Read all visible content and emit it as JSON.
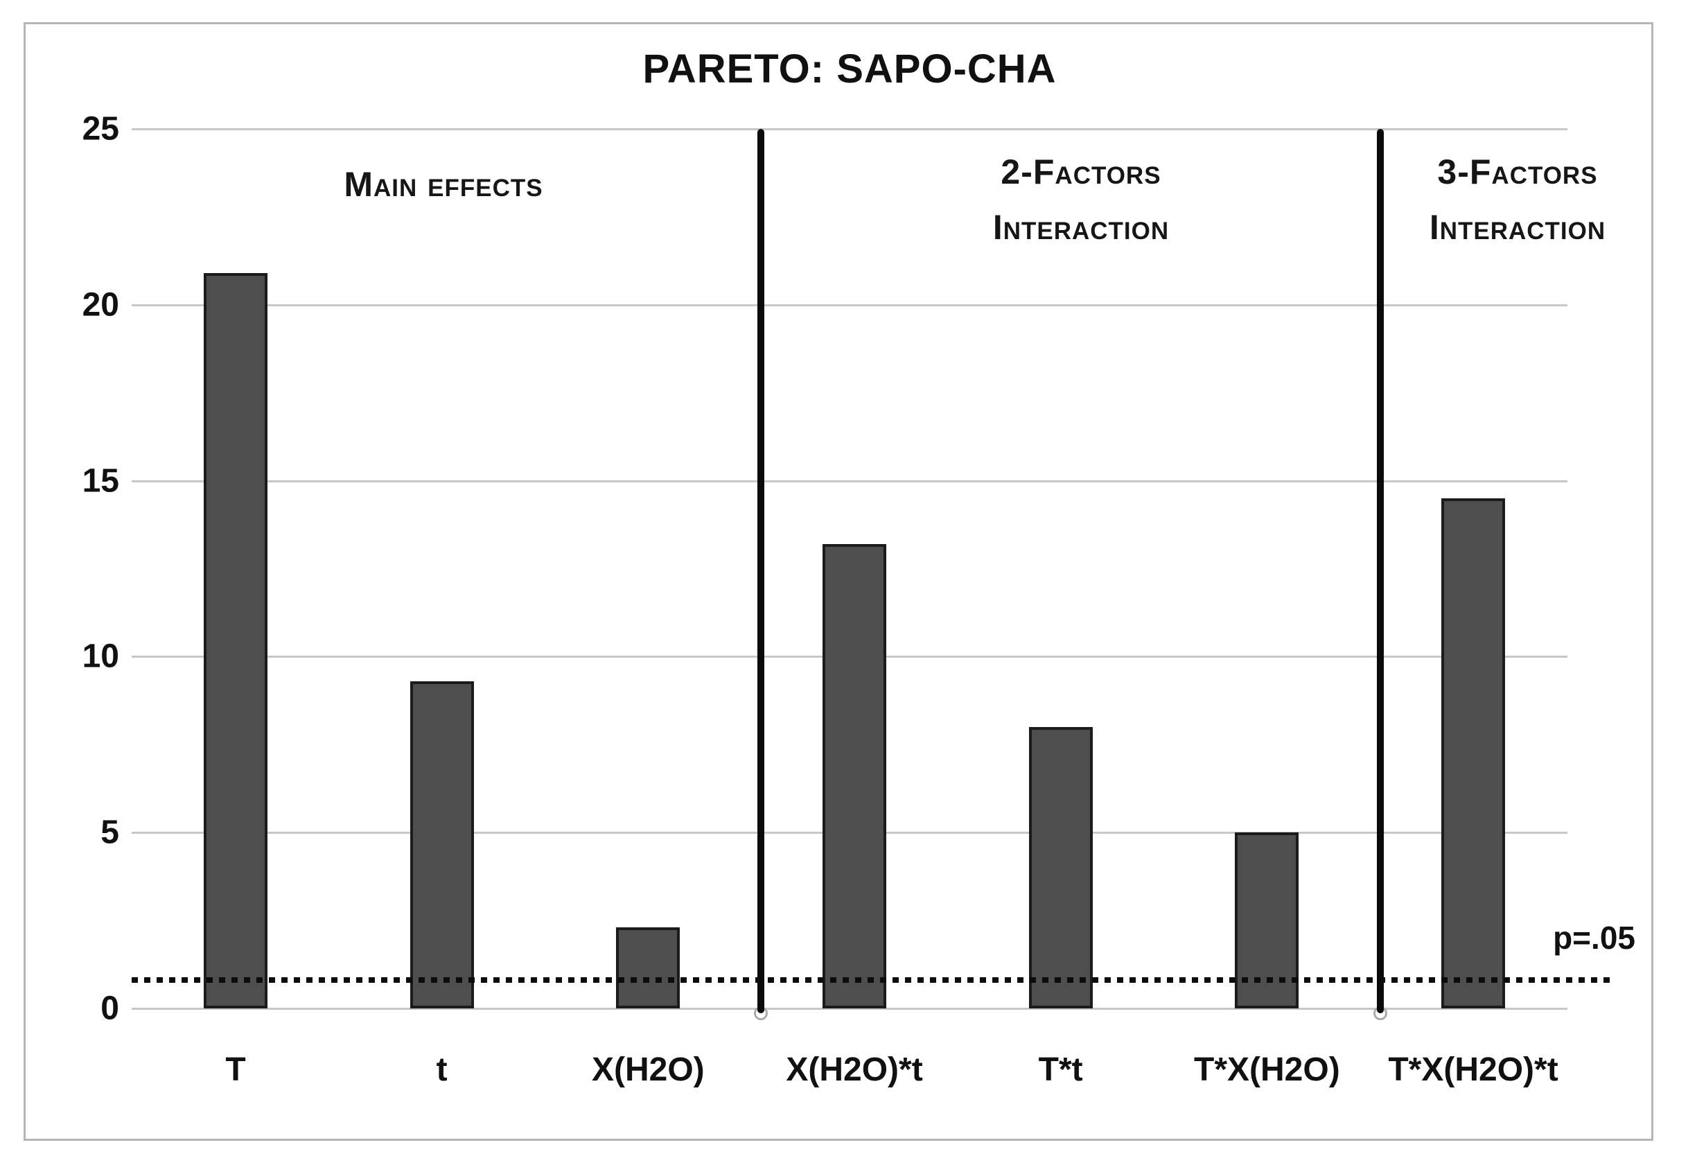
{
  "chart": {
    "title": "PARETO: SAPO-CHA"
  },
  "chart_data": {
    "type": "bar",
    "title": "PARETO: SAPO-CHA",
    "categories": [
      "T",
      "t",
      "X(H2O)",
      "X(H2O)*t",
      "T*t",
      "T*X(H2O)",
      "T*X(H2O)*t"
    ],
    "values": [
      20.9,
      9.3,
      2.3,
      13.2,
      8.0,
      5.0,
      14.5
    ],
    "xlabel": "",
    "ylabel": "",
    "ylim": [
      0,
      25
    ],
    "yticks": [
      0,
      5,
      10,
      15,
      20,
      25
    ],
    "grid": "horizontal",
    "legend": "none",
    "bar_color": "#4e4e4e",
    "bar_border_color": "#1b1b1b",
    "gridline_color": "#c7c7c7",
    "significance_line": {
      "value": 0.8,
      "label": "p=.05",
      "style": "dotted",
      "color": "#0c0c0c"
    },
    "sections": [
      {
        "lines": [
          "Main effects"
        ],
        "categories_span": [
          "T",
          "t",
          "X(H2O)"
        ]
      },
      {
        "lines": [
          "2-Factors",
          "Interaction"
        ],
        "categories_span": [
          "X(H2O)*t",
          "T*t",
          "T*X(H2O)"
        ]
      },
      {
        "lines": [
          "3-Factors",
          "Interaction"
        ],
        "categories_span": [
          "T*X(H2O)*t"
        ]
      }
    ]
  }
}
